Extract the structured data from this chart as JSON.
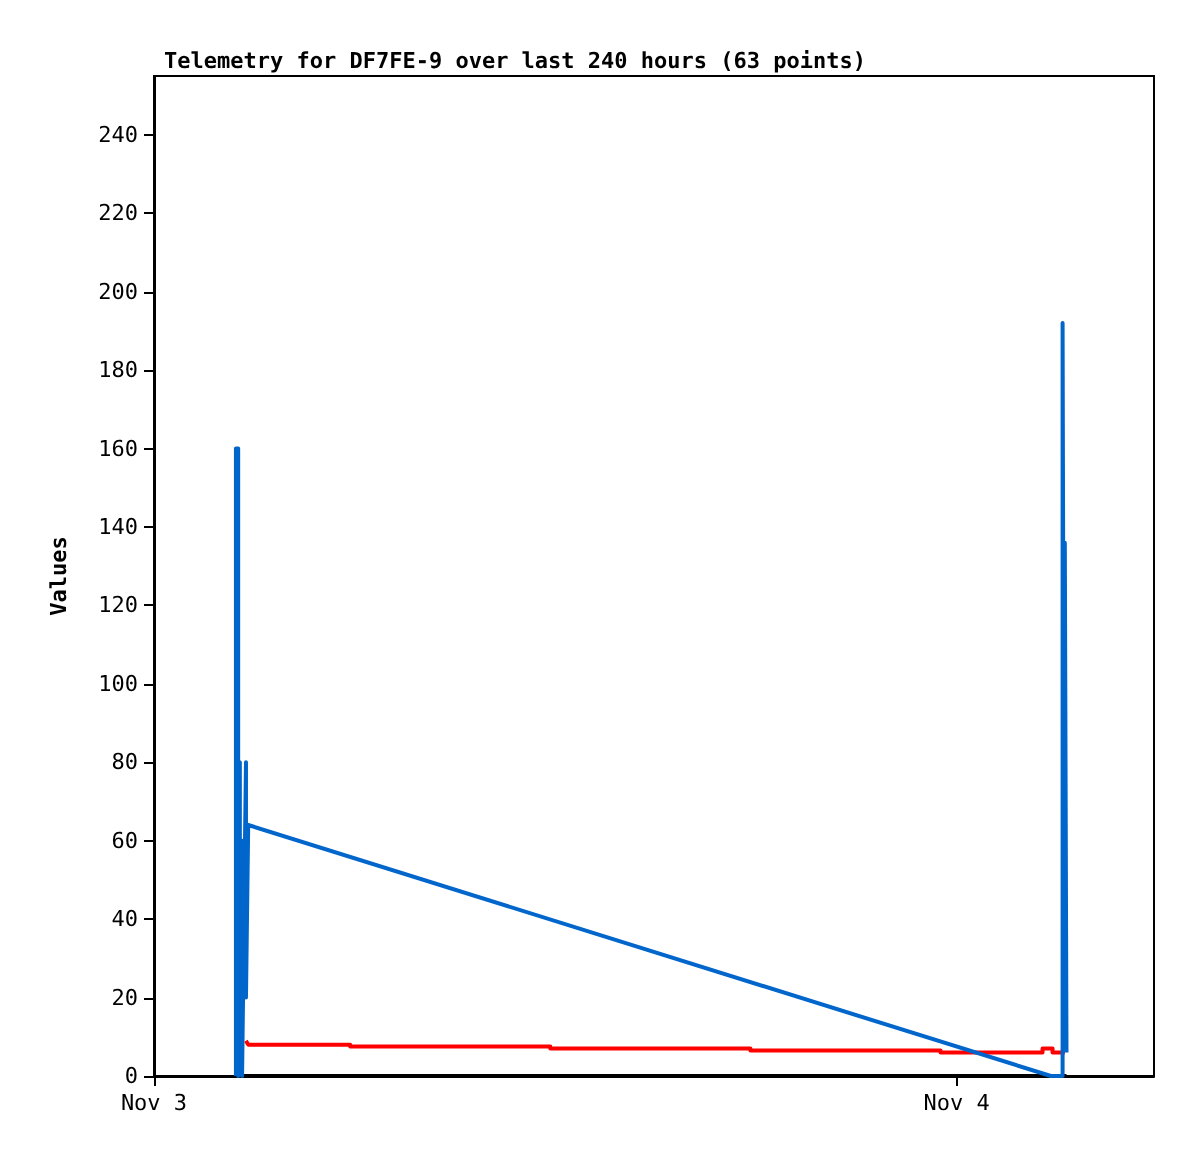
{
  "chart_data": {
    "type": "line",
    "title": "Telemetry for DF7FE-9 over last 240 hours (63 points)",
    "ylabel": "Values",
    "xlim": [
      "--11-03T00:00",
      "--11-04T05:54"
    ],
    "xticks": [
      {
        "value": "--11-03",
        "label": "Nov 3"
      },
      {
        "value": "--11-04",
        "label": "Nov 4"
      }
    ],
    "ylim": [
      0,
      255
    ],
    "yticks": [
      0,
      20,
      40,
      60,
      80,
      100,
      120,
      140,
      160,
      180,
      200,
      220,
      240
    ],
    "grid": false,
    "marker": "none",
    "line_style": "solid",
    "series": [
      {
        "color": "#000000",
        "x": [
          "--11-03T02:27",
          "--11-04T03:17"
        ],
        "values": [
          0,
          0
        ]
      },
      {
        "color": "#ff0000",
        "x": [
          "--11-03T02:45",
          "--11-03T02:49",
          "--11-03T05:52",
          "--11-03T05:52",
          "--11-03T11:51",
          "--11-03T11:51",
          "--11-03T17:50",
          "--11-03T17:50",
          "--11-03T23:31",
          "--11-03T23:31",
          "--11-04T02:34",
          "--11-04T02:34",
          "--11-04T02:52",
          "--11-04T02:52",
          "--11-04T03:14"
        ],
        "values": [
          9,
          8,
          8,
          7.5,
          7.5,
          7,
          7,
          6.5,
          6.5,
          6,
          6,
          7,
          7,
          6,
          6
        ]
      },
      {
        "color": "#0066cc",
        "x": [
          "--11-03T02:27",
          "--11-03T02:27",
          "--11-03T02:31",
          "--11-03T02:31",
          "--11-03T02:34",
          "--11-03T02:34",
          "--11-03T02:38",
          "--11-03T02:38",
          "--11-03T02:45",
          "--11-03T02:45",
          "--11-03T02:49",
          "--11-04T02:49",
          "--11-04T03:10",
          "--11-04T03:10",
          "--11-04T03:12",
          "--11-04T03:14",
          "--11-04T03:17"
        ],
        "values": [
          0,
          160,
          160,
          0,
          80,
          20,
          60,
          0,
          80,
          20,
          64,
          0,
          0,
          192,
          80,
          136,
          6
        ]
      }
    ]
  }
}
